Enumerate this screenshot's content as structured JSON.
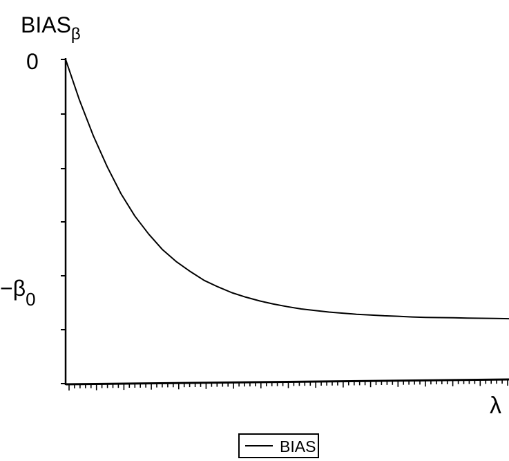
{
  "chart_data": {
    "type": "line",
    "title": "",
    "ylabel": {
      "base": "BIAS",
      "subscript": "β"
    },
    "xlabel": "λ",
    "y_tick_labels": [
      {
        "text": "0",
        "value": 0
      },
      {
        "text": "−β",
        "subscript": "0",
        "value": -1
      }
    ],
    "ylim": [
      -1.2,
      0
    ],
    "xlim": [
      0,
      8
    ],
    "grid": false,
    "legend": {
      "position": "bottom-center",
      "entries": [
        "BIAS"
      ]
    },
    "series": [
      {
        "name": "BIAS",
        "color": "#000000",
        "x": [
          0,
          0.25,
          0.5,
          0.75,
          1,
          1.25,
          1.5,
          1.75,
          2,
          2.25,
          2.5,
          2.75,
          3,
          3.25,
          3.5,
          3.75,
          4,
          4.25,
          4.5,
          4.75,
          5,
          5.25,
          5.5,
          5.75,
          6,
          6.25,
          6.5,
          6.75,
          7,
          7.25,
          7.5,
          7.75,
          8
        ],
        "y": [
          0,
          -0.183,
          -0.343,
          -0.482,
          -0.604,
          -0.704,
          -0.785,
          -0.855,
          -0.909,
          -0.953,
          -0.993,
          -1.022,
          -1.048,
          -1.068,
          -1.085,
          -1.099,
          -1.111,
          -1.121,
          -1.128,
          -1.135,
          -1.14,
          -1.145,
          -1.148,
          -1.152,
          -1.154,
          -1.157,
          -1.159,
          -1.16,
          -1.161,
          -1.162,
          -1.163,
          -1.164,
          -1.165
        ]
      }
    ]
  }
}
